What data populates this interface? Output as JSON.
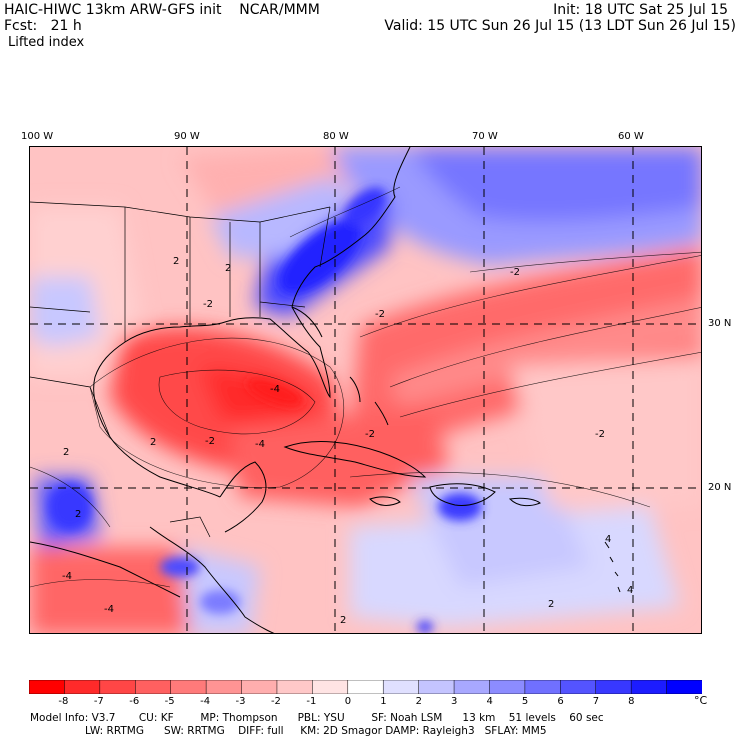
{
  "header": {
    "left_line1": "HAIC-HIWC 13km ARW-GFS init    NCAR/MMM",
    "left_line2": "Fcst:   21 h",
    "field_name": "Lifted index",
    "init": "Init: 18 UTC Sat 25 Jul 15",
    "valid": "Valid: 15 UTC Sun 26 Jul 15 (13 LDT Sun 26 Jul 15)"
  },
  "map": {
    "lon_labels": [
      "100 W",
      "90 W",
      "80 W",
      "70 W",
      "60 W"
    ],
    "lat_labels": [
      "30 N",
      "20 N"
    ],
    "contour_labels": [
      "2",
      "2",
      "2",
      "2",
      "2",
      "2",
      "2",
      "-2",
      "-2",
      "-2",
      "-2",
      "-2",
      "-2",
      "4",
      "4",
      "-4",
      "-4",
      "-4",
      "-4"
    ]
  },
  "colorbar": {
    "labels": [
      "-8",
      "-7",
      "-6",
      "-5",
      "-4",
      "-3",
      "-2",
      "-1",
      "0",
      "1",
      "2",
      "3",
      "4",
      "5",
      "6",
      "7",
      "8"
    ],
    "unit": "°C",
    "colors": [
      "#ff0000",
      "#ff2a2a",
      "#ff4646",
      "#ff6060",
      "#ff7a7a",
      "#ff9494",
      "#ffaeae",
      "#ffc8c8",
      "#ffe4e4",
      "#ffffff",
      "#e0e0ff",
      "#c4c4ff",
      "#a8a8ff",
      "#8c8cff",
      "#7070ff",
      "#5454ff",
      "#3838ff",
      "#1c1cff",
      "#0000ff"
    ]
  },
  "footer": {
    "line1": "Model Info: V3.7       CU: KF        MP: Thompson      PBL: YSU        SF: Noah LSM      13 km    51 levels    60 sec",
    "line2": "LW: RRTMG      SW: RRTMG    DIFF: full     KM: 2D Smagor DAMP: Rayleigh3   SFLAY: MM5"
  }
}
